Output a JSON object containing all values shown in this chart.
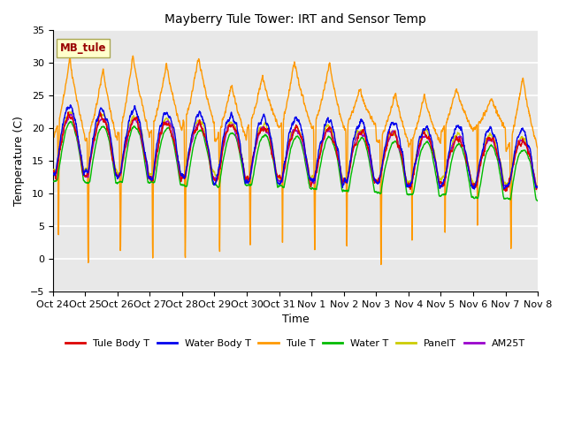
{
  "title": "Mayberry Tule Tower: IRT and Sensor Temp",
  "xlabel": "Time",
  "ylabel": "Temperature (C)",
  "ylim": [
    -5,
    35
  ],
  "yticks": [
    -5,
    0,
    5,
    10,
    15,
    20,
    25,
    30,
    35
  ],
  "x_tick_labels": [
    "Oct 24",
    "Oct 25",
    "Oct 26",
    "Oct 27",
    "Oct 28",
    "Oct 29",
    "Oct 30",
    "Oct 31",
    "Nov 1",
    "Nov 2",
    "Nov 3",
    "Nov 4",
    "Nov 5",
    "Nov 6",
    "Nov 7",
    "Nov 8"
  ],
  "colors": {
    "Tule Body T": "#dd0000",
    "Water Body T": "#0000ee",
    "Tule T": "#ff9900",
    "Water T": "#00bb00",
    "PanelT": "#cccc00",
    "AM25T": "#9900cc"
  },
  "legend_label": "MB_tule",
  "legend_label_color": "#990000",
  "legend_box_color": "#ffffcc",
  "bg_color": "#e8e8e8",
  "grid_color": "#ffffff",
  "n_points": 2160,
  "days": 15,
  "seed": 42
}
